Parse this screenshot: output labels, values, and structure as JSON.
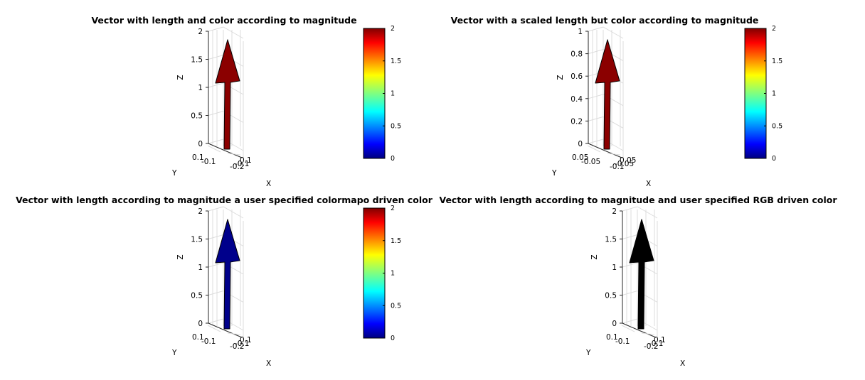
{
  "colors": {
    "axis": "#262626",
    "grid": "#dcdcdc",
    "edge": "#000000"
  },
  "chart_data": [
    {
      "type": "quiver3",
      "title": "Vector with length and color according to magnitude",
      "xlabel": "X",
      "ylabel": "Y",
      "zlabel": "Z",
      "zlim": [
        0,
        2
      ],
      "z_ticks": [
        "0",
        "0.5",
        "1",
        "1.5",
        "2"
      ],
      "y_ticks": [
        "0.1",
        "-0.1"
      ],
      "x_ticks": [
        "-0.2",
        "0.1",
        "-0.1"
      ],
      "vector": {
        "origin": [
          0,
          0,
          0
        ],
        "direction": [
          0,
          0,
          1
        ],
        "magnitude": 1.9
      },
      "arrow_color": "#8b0000",
      "colorbar": {
        "visible": true,
        "range": [
          0,
          2
        ],
        "ticks": [
          "0",
          "0.5",
          "1",
          "1.5",
          "2"
        ],
        "colormap": "jet"
      }
    },
    {
      "type": "quiver3",
      "title": "Vector with a scaled length but color according to magnitude",
      "xlabel": "X",
      "ylabel": "Y",
      "zlabel": "Z",
      "zlim": [
        0,
        1
      ],
      "z_ticks": [
        "0",
        "0.2",
        "0.4",
        "0.6",
        "0.8",
        "1"
      ],
      "y_ticks": [
        "0.05",
        "-0.05"
      ],
      "x_ticks": [
        "-0.1",
        "0.05",
        "-0.05"
      ],
      "vector": {
        "origin": [
          0,
          0,
          0
        ],
        "direction": [
          0,
          0,
          1
        ],
        "magnitude": 0.95
      },
      "arrow_color": "#8b0000",
      "colorbar": {
        "visible": true,
        "range": [
          0,
          2
        ],
        "ticks": [
          "0",
          "0.5",
          "1",
          "1.5",
          "2"
        ],
        "colormap": "jet"
      }
    },
    {
      "type": "quiver3",
      "title": "Vector with length according to magnitude a user specified colormapo driven color",
      "xlabel": "X",
      "ylabel": "Y",
      "zlabel": "Z",
      "zlim": [
        0,
        2
      ],
      "z_ticks": [
        "0",
        "0.5",
        "1",
        "1.5",
        "2"
      ],
      "y_ticks": [
        "0.1",
        "-0.1"
      ],
      "x_ticks": [
        "-0.2",
        "0.1",
        "-0.1"
      ],
      "vector": {
        "origin": [
          0,
          0,
          0
        ],
        "direction": [
          0,
          0,
          1
        ],
        "magnitude": 1.9
      },
      "arrow_color": "#00008b",
      "colorbar": {
        "visible": true,
        "range": [
          0,
          2
        ],
        "ticks": [
          "0",
          "0.5",
          "1",
          "1.5",
          "2"
        ],
        "colormap": "jet"
      }
    },
    {
      "type": "quiver3",
      "title": "Vector with length according to magnitude and user specified RGB driven color",
      "xlabel": "X",
      "ylabel": "Y",
      "zlabel": "Z",
      "zlim": [
        0,
        2
      ],
      "z_ticks": [
        "0",
        "0.5",
        "1",
        "1.5",
        "2"
      ],
      "y_ticks": [
        "0.1",
        "-0.1"
      ],
      "x_ticks": [
        "-0.2",
        "0.1",
        "-0.1"
      ],
      "vector": {
        "origin": [
          0,
          0,
          0
        ],
        "direction": [
          0,
          0,
          1
        ],
        "magnitude": 1.9
      },
      "arrow_color": "#000000",
      "colorbar": {
        "visible": false
      }
    }
  ]
}
